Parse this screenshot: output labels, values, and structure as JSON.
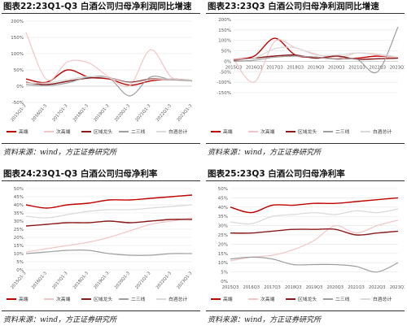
{
  "chart_data": [
    {
      "panel_title": "图表22:23Q1-Q3 白酒公司归母净利润同比增速",
      "source": "资料来源：wind，方正证券研究所",
      "type": "line",
      "x": [
        "2015Q1-3",
        "2016Q1-3",
        "2017Q1-3",
        "2018Q1-3",
        "2019Q1-3",
        "2020Q1-3",
        "2021Q1-3",
        "2022Q1-3",
        "2023Q1-3"
      ],
      "yticks": [
        "200%",
        "150%",
        "100%",
        "50%",
        "0%",
        "-50%"
      ],
      "ylim": [
        -50,
        200
      ],
      "grid": true,
      "legend": "bottom",
      "series": [
        {
          "name": "高端",
          "color": "#c00000",
          "values": [
            22,
            12,
            50,
            28,
            22,
            3,
            16,
            22,
            18
          ]
        },
        {
          "name": "次高端",
          "color": "#f2c6c6",
          "values": [
            165,
            20,
            75,
            72,
            28,
            2,
            112,
            28,
            18
          ]
        },
        {
          "name": "区域龙头",
          "color": "#8b1a1a",
          "values": [
            12,
            5,
            15,
            25,
            25,
            12,
            22,
            20,
            18
          ]
        },
        {
          "name": "二三线",
          "color": "#9e9e9e",
          "values": [
            5,
            2,
            10,
            28,
            25,
            -30,
            28,
            20,
            16
          ]
        },
        {
          "name": "白酒总计",
          "color": "#d9d9d9",
          "values": [
            10,
            10,
            20,
            30,
            25,
            10,
            20,
            22,
            18
          ]
        }
      ]
    },
    {
      "panel_title": "图表23:23Q3 白酒公司归母净利润同比增速",
      "source": "资料来源：wind，方正证券研究所",
      "type": "line",
      "x": [
        "2015Q3",
        "2016Q3",
        "2017Q3",
        "2018Q3",
        "2019Q3",
        "2020Q3",
        "2021Q3",
        "2022Q3",
        "2023Q3"
      ],
      "yticks": [
        "200%",
        "150%",
        "100%",
        "50%",
        "0%",
        "-50%",
        "-100%",
        "-150%"
      ],
      "ylim": [
        -150,
        200
      ],
      "grid": true,
      "legend": "bottom",
      "series": [
        {
          "name": "高端",
          "color": "#c00000",
          "values": [
            10,
            25,
            110,
            30,
            20,
            12,
            15,
            25,
            18
          ]
        },
        {
          "name": "次高端",
          "color": "#f2c6c6",
          "values": [
            10,
            -100,
            95,
            65,
            35,
            15,
            40,
            30,
            16
          ]
        },
        {
          "name": "区域龙头",
          "color": "#8b1a1a",
          "values": [
            5,
            15,
            25,
            30,
            15,
            25,
            10,
            12,
            15
          ]
        },
        {
          "name": "二三线",
          "color": "#9e9e9e",
          "values": [
            0,
            5,
            20,
            25,
            20,
            10,
            10,
            -50,
            165
          ]
        },
        {
          "name": "白酒总计",
          "color": "#d9d9d9",
          "values": [
            10,
            15,
            60,
            65,
            30,
            30,
            40,
            35,
            20
          ]
        }
      ]
    },
    {
      "panel_title": "图表24:23Q1-Q3 白酒公司归母净利率",
      "source": "资料来源：wind，方正证券研究所",
      "type": "line",
      "x": [
        "2015Q1-3",
        "2016Q1-3",
        "2017Q1-3",
        "2018Q1-3",
        "2019Q1-3",
        "2020Q1-3",
        "2021Q1-3",
        "2022Q1-3",
        "2023Q1-3"
      ],
      "yticks": [
        "50%",
        "45%",
        "40%",
        "35%",
        "30%",
        "25%",
        "20%",
        "15%",
        "10%",
        "5%",
        "0%"
      ],
      "ylim": [
        0,
        50
      ],
      "grid": true,
      "legend": "bottom",
      "series": [
        {
          "name": "高端",
          "color": "#c00000",
          "values": [
            40,
            38,
            40,
            41,
            43,
            43,
            44,
            45,
            46
          ]
        },
        {
          "name": "次高端",
          "color": "#f2c6c6",
          "values": [
            11,
            13,
            15,
            17,
            20,
            24,
            28,
            30,
            32
          ]
        },
        {
          "name": "区域龙头",
          "color": "#8b1a1a",
          "values": [
            27,
            28,
            29,
            29,
            30,
            29,
            30,
            31,
            31
          ]
        },
        {
          "name": "二三线",
          "color": "#9e9e9e",
          "values": [
            10,
            11,
            12,
            12,
            10,
            9,
            9,
            10,
            10
          ]
        },
        {
          "name": "白酒总计",
          "color": "#d9d9d9",
          "values": [
            33,
            32,
            34,
            36,
            37,
            37,
            38,
            39,
            40
          ]
        }
      ]
    },
    {
      "panel_title": "图表25:23Q3 白酒公司归母净利率",
      "source": "资料来源：wind，方正证券研究所",
      "type": "line",
      "x": [
        "2015Q3",
        "2016Q3",
        "2017Q3",
        "2018Q3",
        "2019Q3",
        "2020Q3",
        "2021Q3",
        "2022Q3",
        "2023Q3"
      ],
      "yticks": [
        "50%",
        "45%",
        "40%",
        "35%",
        "30%",
        "25%",
        "20%",
        "15%",
        "10%",
        "5%",
        "0%"
      ],
      "ylim": [
        0,
        50
      ],
      "grid": true,
      "legend": "bottom",
      "series": [
        {
          "name": "高端",
          "color": "#c00000",
          "values": [
            40,
            37,
            41,
            41,
            42,
            42,
            43,
            44,
            45
          ]
        },
        {
          "name": "次高端",
          "color": "#f2c6c6",
          "values": [
            11,
            13,
            14,
            17,
            22,
            30,
            26,
            30,
            33
          ]
        },
        {
          "name": "区域龙头",
          "color": "#8b1a1a",
          "values": [
            26,
            26,
            27,
            28,
            28,
            28,
            25,
            26,
            27
          ]
        },
        {
          "name": "二三线",
          "color": "#9e9e9e",
          "values": [
            12,
            13,
            12,
            9,
            9,
            9,
            8,
            5,
            10
          ]
        },
        {
          "name": "白酒总计",
          "color": "#d9d9d9",
          "values": [
            32,
            31,
            35,
            36,
            37,
            36,
            38,
            37,
            39
          ]
        }
      ]
    }
  ]
}
